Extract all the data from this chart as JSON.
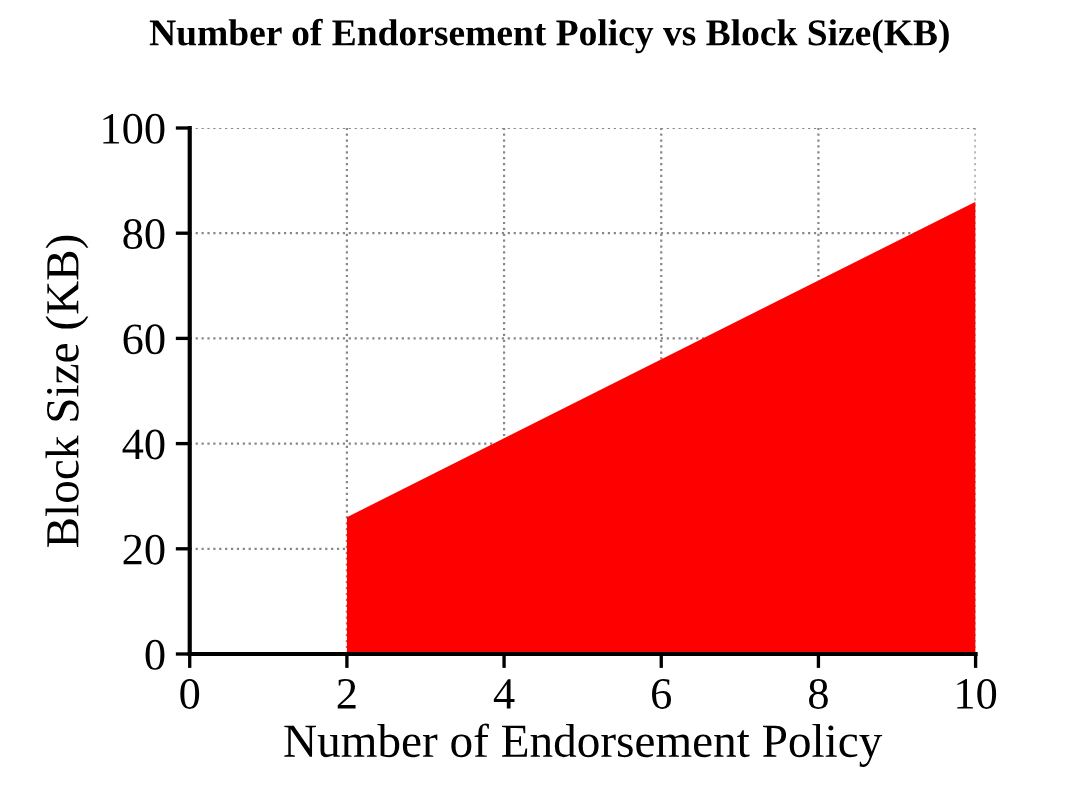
{
  "chart_data": {
    "type": "area",
    "title": "Number of Endorsement Policy vs Block Size(KB)",
    "xlabel": "Number of Endorsement Policy",
    "ylabel": "Block Size (KB)",
    "x": [
      2,
      10
    ],
    "series": [
      {
        "color": "#ff0000",
        "values": [
          26,
          86
        ]
      }
    ],
    "xlim": [
      0,
      10
    ],
    "xticks": [
      0,
      2,
      4,
      6,
      8,
      10
    ],
    "ylim": [
      0,
      100
    ],
    "yticks": [
      0,
      20,
      40,
      60,
      80,
      100
    ],
    "grid": true
  }
}
